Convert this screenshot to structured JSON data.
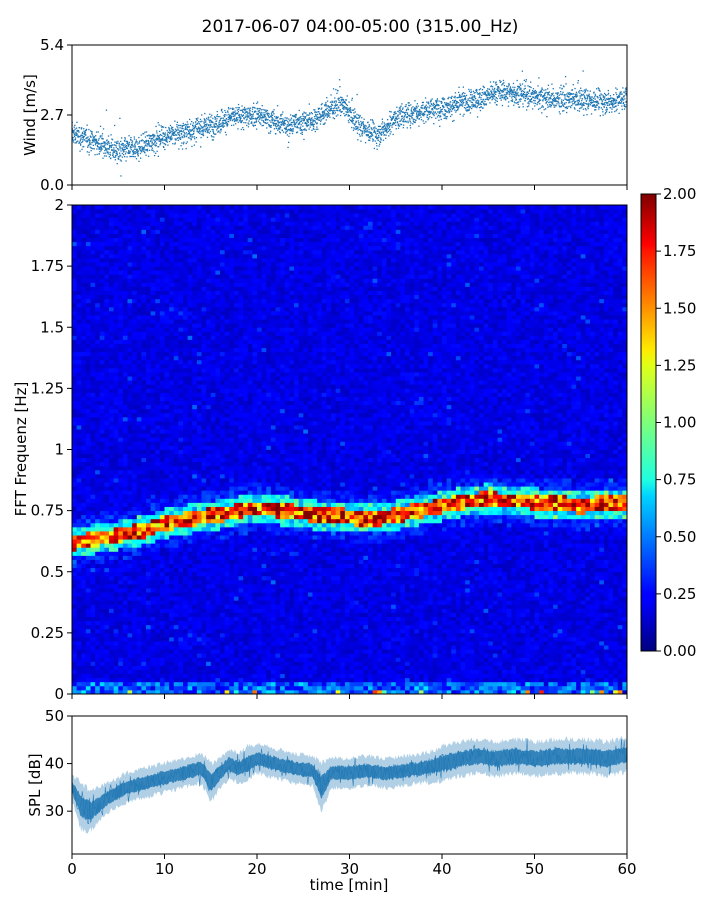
{
  "chart_data": [
    {
      "type": "scatter",
      "title": "2017-06-07 04:00-05:00 (315.00_Hz)",
      "xlabel": "",
      "ylabel": "Wind [m/s]",
      "xlim": [
        0,
        60
      ],
      "ylim": [
        0.0,
        5.4
      ],
      "yticks": [
        "0.0",
        "2.7",
        "5.4"
      ],
      "color": "#1f77b4",
      "trend": {
        "x": [
          0,
          3,
          5,
          7,
          10,
          13,
          15,
          17,
          20,
          23,
          26,
          29,
          31,
          33,
          35,
          38,
          40,
          43,
          46,
          49,
          52,
          55,
          58,
          60
        ],
        "y": [
          2.0,
          1.6,
          1.3,
          1.4,
          1.9,
          2.1,
          2.3,
          2.6,
          2.7,
          2.3,
          2.5,
          3.2,
          2.3,
          1.9,
          2.6,
          2.9,
          3.0,
          3.2,
          3.6,
          3.5,
          3.3,
          3.3,
          3.2,
          3.4
        ]
      }
    },
    {
      "type": "heatmap",
      "xlabel": "",
      "ylabel": "FFT Frequenz [Hz]",
      "xlim": [
        0,
        60
      ],
      "ylim": [
        0,
        2
      ],
      "yticks": [
        "0",
        "0.25",
        "0.5",
        "0.75",
        "1",
        "1.25",
        "1.5",
        "1.75",
        "2"
      ],
      "colormap": "jet",
      "colorbar": {
        "range": [
          0.0,
          2.0
        ],
        "ticks": [
          "0.00",
          "0.25",
          "0.50",
          "0.75",
          "1.00",
          "1.25",
          "1.50",
          "1.75",
          "2.00"
        ]
      },
      "ridge": {
        "x": [
          0,
          2,
          5,
          8,
          10,
          13,
          15,
          17,
          19,
          21,
          23,
          25,
          27,
          29,
          31,
          33,
          35,
          37,
          39,
          41,
          43,
          45,
          47,
          49,
          51,
          53,
          55,
          57,
          59,
          60
        ],
        "y": [
          0.62,
          0.63,
          0.65,
          0.67,
          0.7,
          0.72,
          0.73,
          0.74,
          0.76,
          0.76,
          0.75,
          0.74,
          0.73,
          0.73,
          0.72,
          0.72,
          0.73,
          0.75,
          0.76,
          0.78,
          0.79,
          0.8,
          0.79,
          0.79,
          0.78,
          0.78,
          0.77,
          0.78,
          0.78,
          0.78
        ]
      }
    },
    {
      "type": "area",
      "xlabel": "time [min]",
      "ylabel": "SPL [dB]",
      "xlim": [
        0,
        60
      ],
      "ylim": [
        21,
        50
      ],
      "yticks": [
        "30",
        "40",
        "50"
      ],
      "xticks": [
        "0",
        "10",
        "20",
        "30",
        "40",
        "50",
        "60"
      ],
      "color": "#1f77b4",
      "mean": {
        "x": [
          0,
          1,
          2,
          3,
          4,
          5,
          6,
          8,
          10,
          12,
          14,
          15,
          16,
          17,
          18,
          19,
          20,
          22,
          24,
          26,
          27,
          28,
          30,
          32,
          34,
          36,
          38,
          40,
          42,
          44,
          46,
          48,
          50,
          52,
          54,
          56,
          58,
          60
        ],
        "y": [
          35,
          31,
          30,
          31.5,
          33,
          34,
          35,
          36,
          37,
          38,
          39,
          36,
          38,
          40,
          39,
          40,
          41,
          40,
          39,
          38.5,
          35,
          38,
          38,
          38.5,
          38,
          38.5,
          39,
          40,
          41,
          41.5,
          41,
          41.5,
          41,
          41.5,
          41.5,
          41.5,
          41,
          42
        ]
      },
      "spread": {
        "x": [
          0,
          1,
          2,
          3,
          4,
          5,
          6,
          8,
          10,
          12,
          14,
          15,
          16,
          17,
          18,
          19,
          20,
          22,
          24,
          26,
          27,
          28,
          30,
          32,
          34,
          36,
          38,
          40,
          42,
          44,
          46,
          48,
          50,
          52,
          54,
          56,
          58,
          60
        ],
        "y": [
          2.5,
          5,
          4,
          3.5,
          3,
          3,
          3,
          3,
          3,
          3,
          3,
          4,
          3,
          3,
          3,
          3.5,
          3,
          3,
          3,
          3,
          5,
          3,
          3,
          3,
          3,
          3,
          3,
          3.5,
          3.5,
          3.5,
          3.5,
          3.5,
          3.5,
          3.5,
          3.5,
          3.5,
          3.5,
          3.5
        ]
      }
    }
  ]
}
